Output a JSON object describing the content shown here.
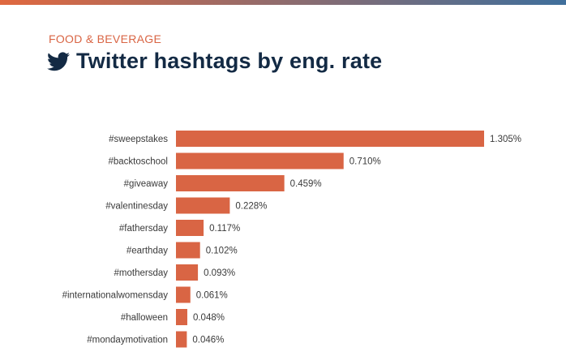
{
  "header": {
    "category": "FOOD & BEVERAGE",
    "title": "Twitter hashtags by eng. rate",
    "icon": "twitter-bird-icon"
  },
  "colors": {
    "bar": "#d96544",
    "category_text": "#d96544",
    "title_text": "#132a44",
    "stripe_start": "#e0683f",
    "stripe_end": "#3f6f9c"
  },
  "chart_data": {
    "type": "bar",
    "orientation": "horizontal",
    "title": "Twitter hashtags by eng. rate",
    "xlabel": "",
    "ylabel": "",
    "unit": "%",
    "grid": false,
    "categories": [
      "#sweepstakes",
      "#backtoschool",
      "#giveaway",
      "#valentinesday",
      "#fathersday",
      "#earthday",
      "#mothersday",
      "#internationalwomensday",
      "#halloween",
      "#mondaymotivation"
    ],
    "values": [
      1.305,
      0.71,
      0.459,
      0.228,
      0.117,
      0.102,
      0.093,
      0.061,
      0.048,
      0.046
    ],
    "labels": [
      "1.305%",
      "0.710%",
      "0.459%",
      "0.228%",
      "0.117%",
      "0.102%",
      "0.093%",
      "0.061%",
      "0.048%",
      "0.046%"
    ],
    "xlim": [
      0,
      1.305
    ]
  }
}
